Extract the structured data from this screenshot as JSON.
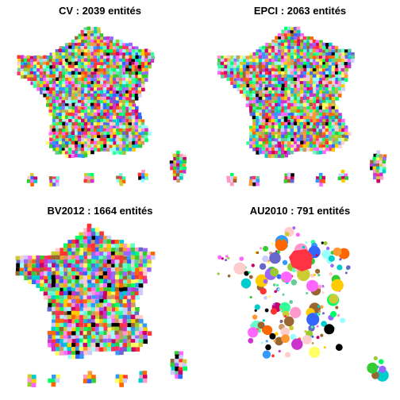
{
  "figure": {
    "panels": [
      {
        "id": "cv",
        "title": "CV : 2039 entités",
        "entity_count": 2039
      },
      {
        "id": "epci",
        "title": "EPCI : 2063 entités",
        "entity_count": 2063
      },
      {
        "id": "bv2012",
        "title": "BV2012 : 1664 entités",
        "entity_count": 1664
      },
      {
        "id": "au2010",
        "title": "AU2010 : 791 entités",
        "entity_count": 791
      }
    ],
    "palette": [
      "#ff3366",
      "#33cc33",
      "#3366ff",
      "#ffcc00",
      "#ff66ff",
      "#00cccc",
      "#ff9933",
      "#9966ff",
      "#99cc33",
      "#ff3333",
      "#66ffcc",
      "#cc33cc",
      "#ffff66",
      "#3399ff",
      "#cc9966",
      "#ff99cc",
      "#000000",
      "#33ff99",
      "#996633",
      "#6666cc",
      "#ccccff",
      "#ff6600",
      "#00ff66",
      "#cc0066",
      "#99ffff",
      "#ffcccc",
      "#66cc99",
      "#cccc33"
    ],
    "background": "#ffffff"
  }
}
